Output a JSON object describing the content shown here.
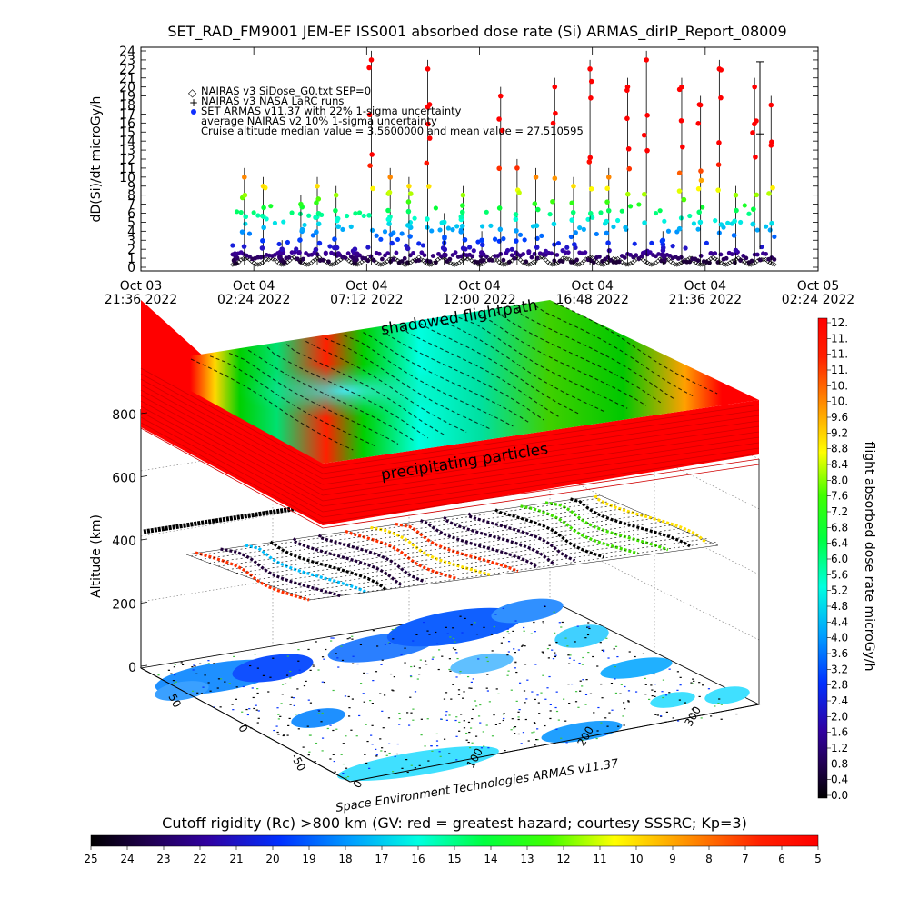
{
  "title": "SET_RAD_FM9001  JEM-EF ISS001 absorbed dose rate (Si) ARMAS_dirIP_Report_08009",
  "chart_data": [
    {
      "type": "scatter",
      "ylabel": "dD(Si)/dt microGy/h",
      "ylim": [
        0,
        24
      ],
      "y_ticks": [
        "0",
        "1",
        "2",
        "3",
        "4",
        "5",
        "6",
        "7",
        "8",
        "9",
        "10",
        "11",
        "12",
        "13",
        "14",
        "15",
        "16",
        "17",
        "18",
        "19",
        "20",
        "21",
        "22",
        "23",
        "24"
      ],
      "x_ticks": [
        {
          "line1": "Oct 03",
          "line2": "21:36  2022"
        },
        {
          "line1": "Oct 04",
          "line2": "02:24  2022"
        },
        {
          "line1": "Oct 04",
          "line2": "07:12  2022"
        },
        {
          "line1": "Oct 04",
          "line2": "12:00 2022"
        },
        {
          "line1": "Oct 04",
          "line2": "16:48  2022"
        },
        {
          "line1": "Oct 04",
          "line2": "21:36  2022"
        },
        {
          "line1": "Oct 05",
          "line2": "02:24  2022"
        }
      ],
      "legend": [
        "NAIRAS v3 SiDose_G0.txt SEP=0",
        "NAIRAS v3 NASA LaRC runs",
        "SET ARMAS v11.37 with 22% 1-sigma uncertainty",
        "average NAIRAS v2 10% 1-sigma uncertainty",
        "Cruise altitude median value = 3.5600000 and mean value = 27.510595"
      ],
      "series": [
        {
          "name": "SET ARMAS v11.37 with 22% 1-sigma uncertainty",
          "x_hours_from_first_tick": [
            4.0,
            4.4,
            5.2,
            6.0,
            6.8,
            7.5,
            8.3,
            9.1,
            9.8,
            10.6,
            11.4,
            12.2,
            12.9,
            13.7,
            14.5,
            15.3,
            16.0,
            16.8,
            17.6,
            18.4,
            19.1,
            19.9,
            20.7,
            21.5,
            22.2,
            23.0,
            23.8,
            24.6,
            25.3,
            26.1,
            26.8
          ],
          "values": [
            1.5,
            10,
            9,
            2,
            7,
            9,
            8,
            2,
            23,
            10,
            9,
            22,
            5,
            8,
            3,
            19,
            11,
            10,
            20,
            9,
            22,
            10,
            20,
            23,
            3,
            20,
            18,
            22,
            8,
            20,
            18
          ]
        },
        {
          "name": "NAIRAS v3 SiDose_G0.txt SEP=0",
          "values_range": [
            0,
            2.8
          ]
        }
      ]
    },
    {
      "type": "heatmap",
      "ylabel": "Altitude (km)",
      "z_ticks": [
        "0",
        "200",
        "400",
        "600",
        "800"
      ],
      "lat_ticks": [
        "50",
        "0",
        "-50"
      ],
      "lon_ticks": [
        "0",
        "100",
        "200",
        "300"
      ],
      "annotations": [
        "shadowed flightpath",
        "precipitating particles"
      ],
      "credit": "Space Environment Technologies ARMAS v11.37"
    },
    {
      "type": "colorbar",
      "label": "flight absorbed dose rate microGy/h",
      "ticks": [
        "12.",
        "11.",
        "11.",
        "11.",
        "10.",
        "10.",
        "9.6",
        "9.2",
        "8.8",
        "8.4",
        "8.0",
        "7.6",
        "7.2",
        "6.8",
        "6.4",
        "6.0",
        "5.6",
        "5.2",
        "4.8",
        "4.4",
        "4.0",
        "3.6",
        "3.2",
        "2.8",
        "2.4",
        "2.0",
        "1.6",
        "1.2",
        "0.8",
        "0.4",
        "0.0"
      ],
      "min": 0.0,
      "max": 12.0
    },
    {
      "type": "colorbar",
      "label": "Cutoff rigidity (Rc) >800 km (GV: red = greatest hazard; courtesy SSSRC; Kp=3)",
      "ticks": [
        "25",
        "24",
        "23",
        "22",
        "21",
        "20",
        "19",
        "18",
        "17",
        "16",
        "15",
        "14",
        "13",
        "12",
        "11",
        "10",
        "9",
        "8",
        "7",
        "6",
        "5"
      ]
    }
  ]
}
